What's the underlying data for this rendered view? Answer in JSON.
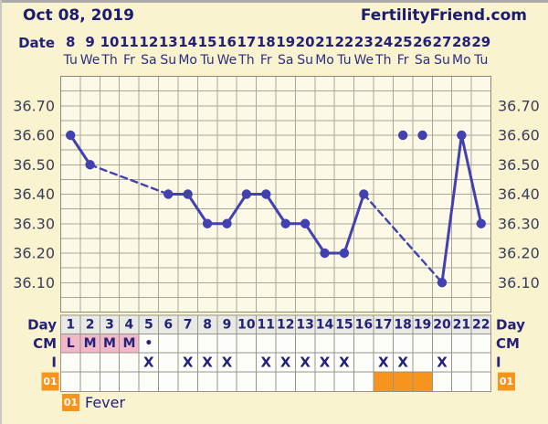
{
  "header": {
    "date": "Oct 08, 2019",
    "brand": "FertilityFriend.com"
  },
  "colors": {
    "page_bg": "#FAF3D0",
    "plot_bg": "#FCF9E6",
    "grid": "#A9A797",
    "plot_border": "#8C8A79",
    "line": "#4340B0",
    "navy": "#23217A",
    "axis_text": "#3C3C5C",
    "pink": "#F2B7C9",
    "orange": "#F7941D",
    "day_cell_bg": "#E9E9E5",
    "cell_bg": "#FDFDFA",
    "cell_border": "#95958A",
    "badge_text": "#FFFFFF"
  },
  "axis": {
    "date_label": "Date",
    "dates": [
      "8",
      "9",
      "10",
      "11",
      "12",
      "13",
      "14",
      "15",
      "16",
      "17",
      "18",
      "19",
      "20",
      "21",
      "22",
      "23",
      "24",
      "25",
      "26",
      "27",
      "28",
      "29"
    ],
    "weekdays": [
      "Tu",
      "We",
      "Th",
      "Fr",
      "Sa",
      "Su",
      "Mo",
      "Tu",
      "We",
      "Th",
      "Fr",
      "Sa",
      "Su",
      "Mo",
      "Tu",
      "We",
      "Th",
      "Fr",
      "Sa",
      "Su",
      "Mo",
      "Tu"
    ],
    "y_tick_labels": [
      "36.70",
      "36.60",
      "36.50",
      "36.40",
      "36.30",
      "36.20",
      "36.10"
    ],
    "y_tick_values": [
      36.7,
      36.6,
      36.5,
      36.4,
      36.3,
      36.2,
      36.1
    ]
  },
  "chart_data": {
    "type": "line",
    "title": "",
    "xlabel": "",
    "ylabel": "",
    "x_days": [
      1,
      2,
      3,
      4,
      5,
      6,
      7,
      8,
      9,
      10,
      11,
      12,
      13,
      14,
      15,
      16,
      17,
      18,
      19,
      20,
      21,
      22
    ],
    "series": [
      {
        "name": "temperature",
        "values_by_day": [
          36.6,
          36.5,
          null,
          null,
          null,
          36.4,
          36.4,
          36.3,
          36.3,
          36.4,
          36.4,
          36.3,
          36.3,
          36.2,
          36.2,
          36.4,
          null,
          36.6,
          36.6,
          36.1,
          36.6,
          36.3
        ]
      }
    ],
    "discarded_days": [
      18,
      19
    ],
    "missing_days": [
      3,
      4,
      5,
      17
    ],
    "segments": [
      {
        "style": "solid",
        "from": 1,
        "to": 2
      },
      {
        "style": "dashed",
        "from": 2,
        "to": 6
      },
      {
        "style": "solid",
        "from": 6,
        "to": 16
      },
      {
        "style": "dashed",
        "from": 16,
        "to": 20
      },
      {
        "style": "solid",
        "from": 20,
        "to": 22
      }
    ],
    "ylim": [
      36.0,
      36.8
    ],
    "y_tick_step": 0.1,
    "minor_grid_step": 0.05,
    "grid": true,
    "legend_position": "none"
  },
  "table": {
    "day_label": "Day",
    "day_numbers": [
      "1",
      "2",
      "3",
      "4",
      "5",
      "6",
      "7",
      "8",
      "9",
      "10",
      "11",
      "12",
      "13",
      "14",
      "15",
      "16",
      "17",
      "18",
      "19",
      "20",
      "21",
      "22"
    ],
    "cm_label": "CM",
    "cm_values": [
      "L",
      "M",
      "M",
      "M",
      "•",
      "",
      "",
      "",
      "",
      "",
      "",
      "",
      "",
      "",
      "",
      "",
      "",
      "",
      "",
      "",
      "",
      ""
    ],
    "cm_pink_days": [
      1,
      2,
      3,
      4
    ],
    "i_label": "I",
    "i_mark": "X",
    "i_x_days": [
      5,
      7,
      8,
      9,
      11,
      12,
      13,
      14,
      15,
      17,
      18,
      20
    ],
    "fever_row_label": "01",
    "fever_days": [
      17,
      18,
      19
    ]
  },
  "legend": {
    "badge": "01",
    "label": "Fever"
  }
}
